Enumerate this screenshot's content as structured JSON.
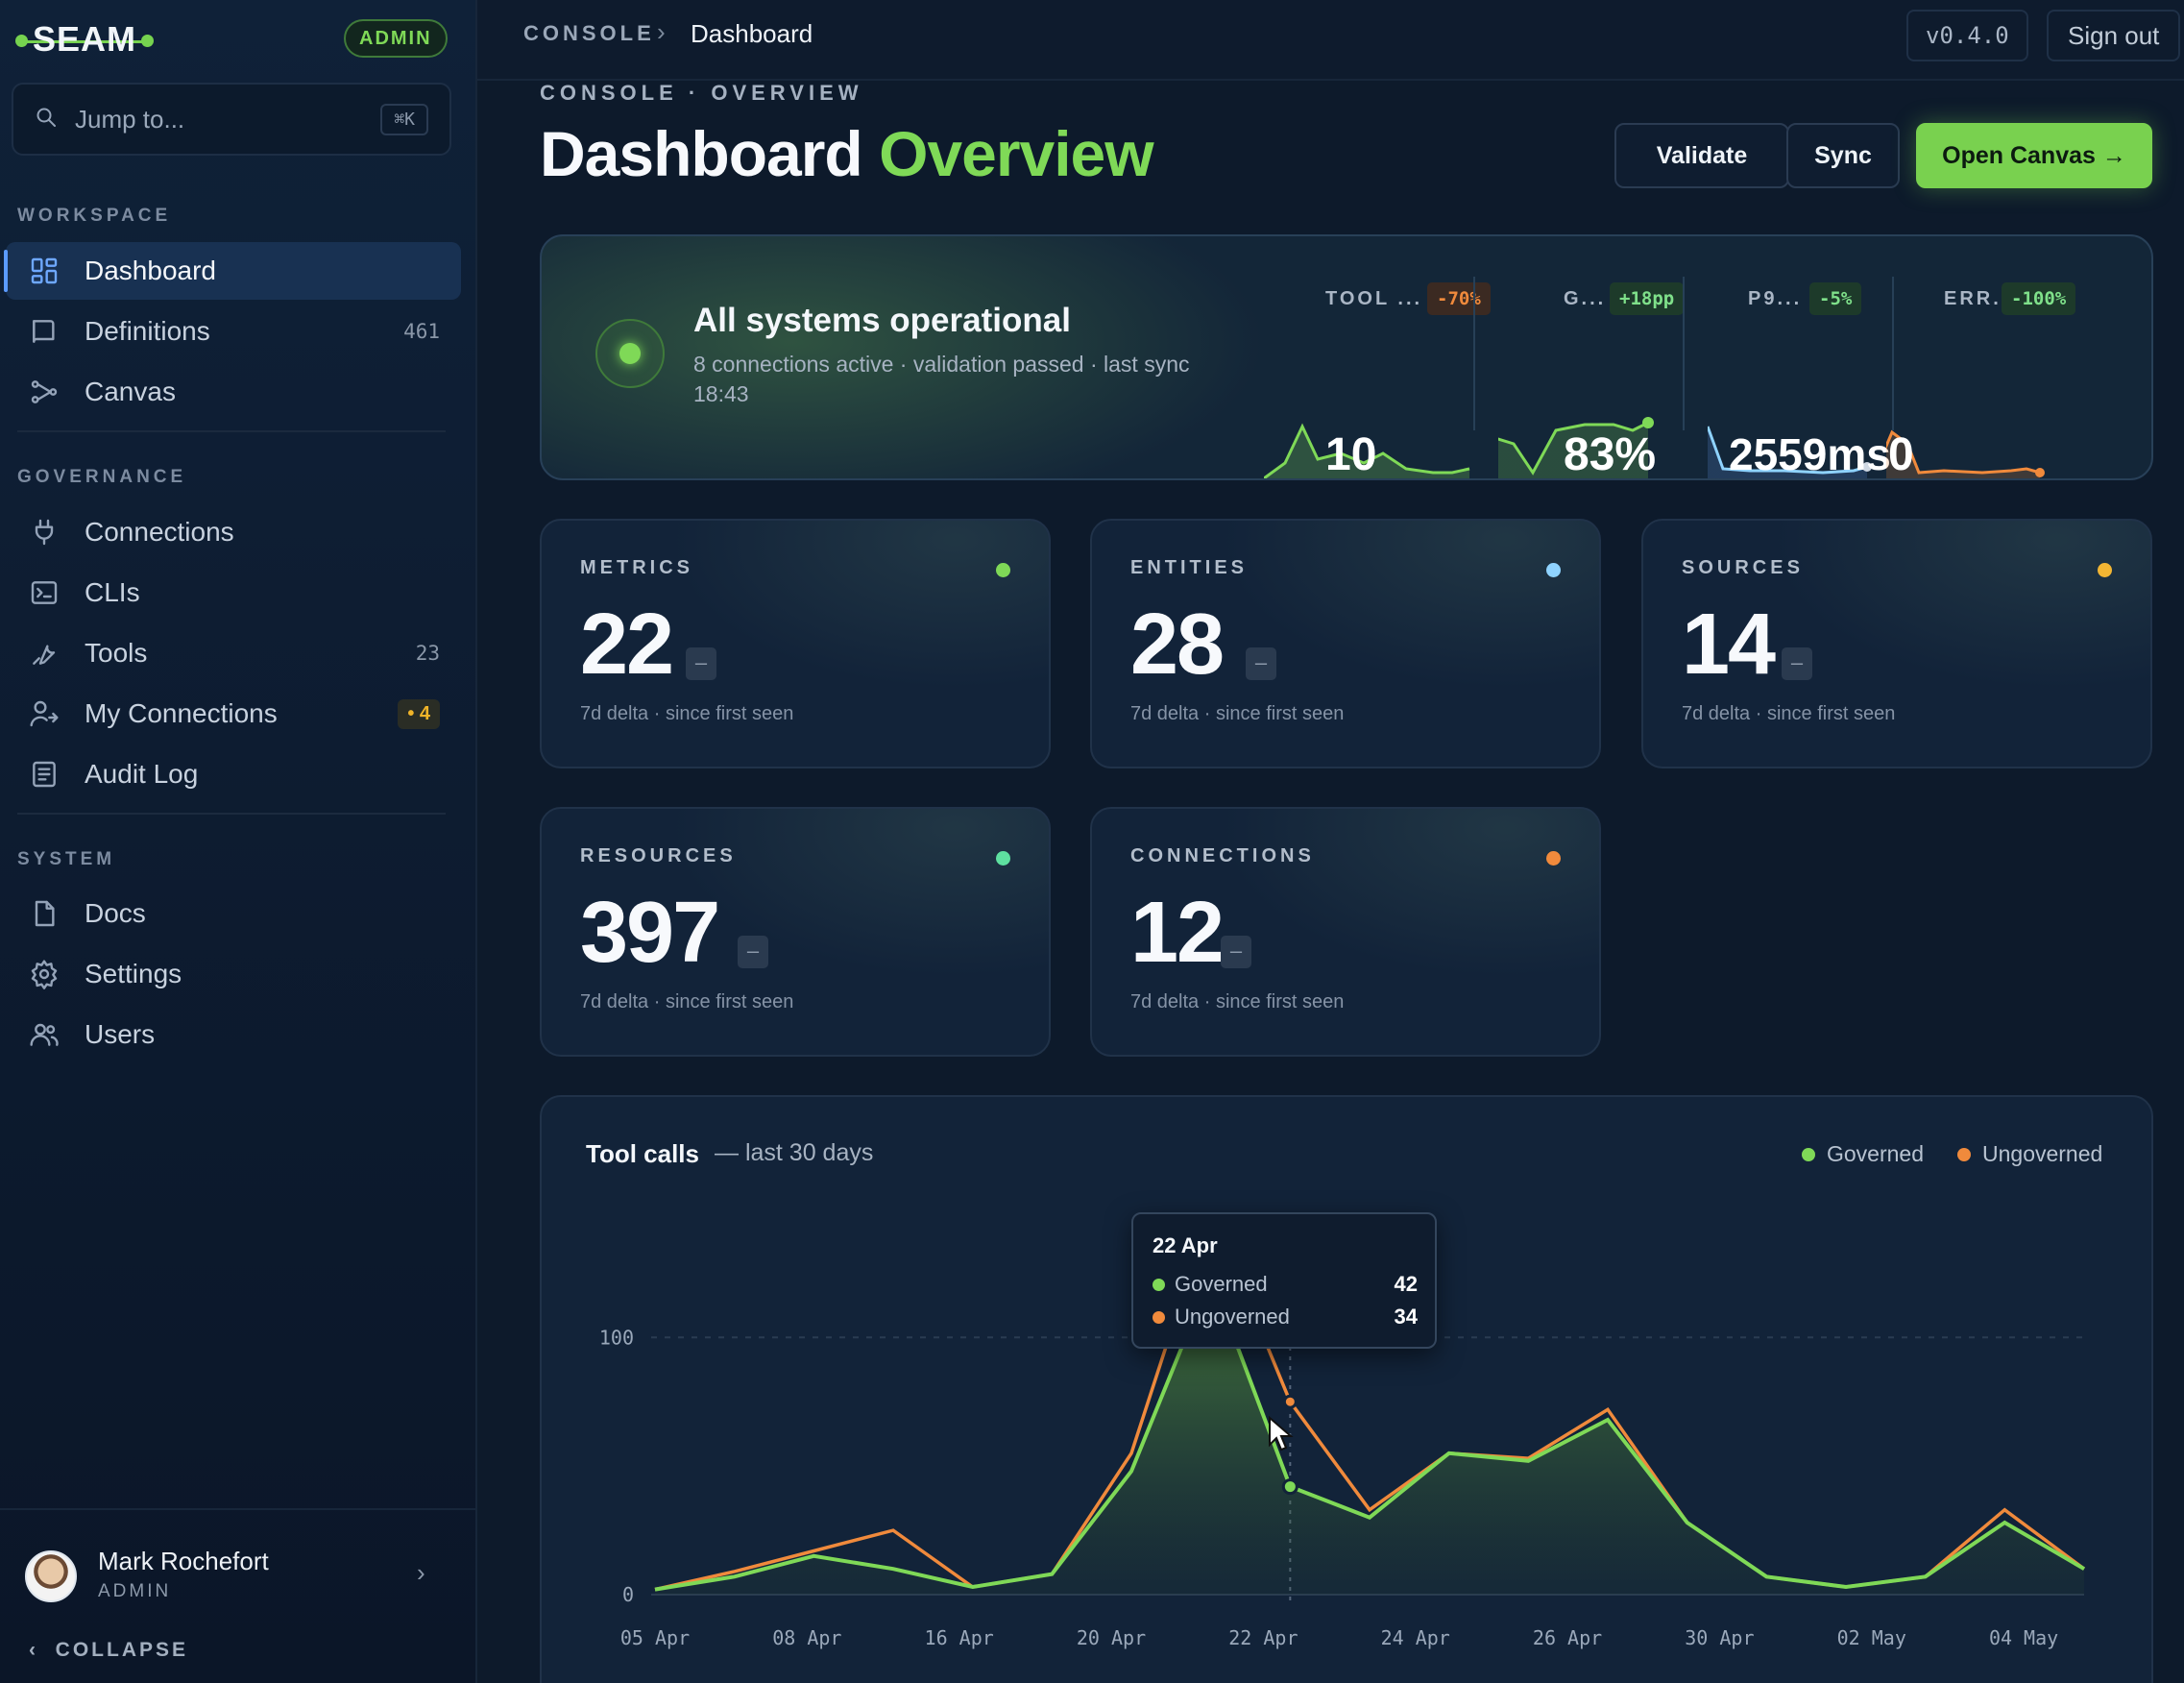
{
  "brand": {
    "name": "SEAM",
    "role_badge": "ADMIN"
  },
  "search": {
    "placeholder": "Jump to...",
    "shortcut": "⌘K"
  },
  "sidebar": {
    "sections": [
      {
        "label": "WORKSPACE",
        "items": [
          {
            "label": "Dashboard",
            "icon": "grid-icon",
            "active": true
          },
          {
            "label": "Definitions",
            "icon": "book-icon",
            "count": "461"
          },
          {
            "label": "Canvas",
            "icon": "nodes-icon"
          }
        ]
      },
      {
        "label": "GOVERNANCE",
        "items": [
          {
            "label": "Connections",
            "icon": "plug-icon"
          },
          {
            "label": "CLIs",
            "icon": "terminal-icon"
          },
          {
            "label": "Tools",
            "icon": "wrench-icon",
            "count": "23"
          },
          {
            "label": "My Connections",
            "icon": "user-link-icon",
            "badge": "• 4"
          },
          {
            "label": "Audit Log",
            "icon": "list-icon"
          }
        ]
      },
      {
        "label": "SYSTEM",
        "items": [
          {
            "label": "Docs",
            "icon": "file-icon"
          },
          {
            "label": "Settings",
            "icon": "gear-icon"
          },
          {
            "label": "Users",
            "icon": "users-icon"
          }
        ]
      }
    ],
    "user": {
      "name": "Mark Rochefort",
      "role": "ADMIN"
    },
    "collapse_label": "COLLAPSE"
  },
  "topbar": {
    "crumb_root": "CONSOLE",
    "crumb_current": "Dashboard",
    "version": "v0.4.0",
    "signout": "Sign out"
  },
  "header": {
    "eyebrow": "CONSOLE · OVERVIEW",
    "title_main": "Dashboard",
    "title_accent": "Overview",
    "buttons": {
      "validate": "Validate",
      "sync": "Sync",
      "open_canvas": "Open Canvas →"
    }
  },
  "status": {
    "title": "All systems operational",
    "subtitle": "8 connections active · validation passed · last sync 18:43",
    "kpis": [
      {
        "label": "TOOL ...",
        "delta": "-70%",
        "value": "10",
        "tone": "bad"
      },
      {
        "label": "G...",
        "delta": "+18pp",
        "value": "83%",
        "tone": "good"
      },
      {
        "label": "P9...",
        "delta": "-5%",
        "value": "2559ms",
        "tone": "good"
      },
      {
        "label": "ERR...",
        "delta": "-100%",
        "value": "0",
        "tone": "good"
      }
    ]
  },
  "cards": [
    {
      "label": "METRICS",
      "value": "22",
      "dash": "–",
      "foot": "7d delta · since first seen",
      "dot": "#7fd957"
    },
    {
      "label": "ENTITIES",
      "value": "28",
      "dash": "–",
      "foot": "7d delta · since first seen",
      "dot": "#8fd3ff"
    },
    {
      "label": "SOURCES",
      "value": "14",
      "dash": "–",
      "foot": "7d delta · since first seen",
      "dot": "#f2b533"
    },
    {
      "label": "RESOURCES",
      "value": "397",
      "dash": "–",
      "foot": "7d delta · since first seen",
      "dot": "#5ee0a0"
    },
    {
      "label": "CONNECTIONS",
      "value": "12",
      "dash": "–",
      "foot": "7d delta · since first seen",
      "dot": "#f08a3c"
    }
  ],
  "tool_calls": {
    "title": "Tool calls",
    "subtitle": "— last 30 days",
    "legend": {
      "governed": "Governed",
      "ungoverned": "Ungoverned"
    },
    "tooltip": {
      "date": "22 Apr",
      "governed_label": "Governed",
      "governed_value": "42",
      "ungoverned_label": "Ungoverned",
      "ungoverned_value": "34"
    }
  },
  "chart_data": {
    "type": "area",
    "title": "Tool calls",
    "subtitle": "— last 30 days",
    "x_tick_labels": [
      "05 Apr",
      "08 Apr",
      "16 Apr",
      "20 Apr",
      "22 Apr",
      "24 Apr",
      "26 Apr",
      "30 Apr",
      "02 May",
      "04 May"
    ],
    "y_tick_labels": [
      "0",
      "100"
    ],
    "ylim": [
      0,
      130
    ],
    "grid": true,
    "legend_position": "top-right",
    "series": [
      {
        "name": "Governed",
        "color": "#7fd957",
        "values": [
          2,
          7,
          15,
          10,
          3,
          8,
          48,
          124,
          42,
          30,
          55,
          52,
          68,
          28,
          7,
          3,
          7,
          28,
          10
        ]
      },
      {
        "name": "Ungoverned",
        "color": "#f08a3c",
        "values": [
          2,
          9,
          17,
          25,
          3,
          8,
          55,
          150,
          75,
          33,
          55,
          53,
          72,
          28,
          7,
          3,
          7,
          33,
          10
        ]
      }
    ]
  }
}
